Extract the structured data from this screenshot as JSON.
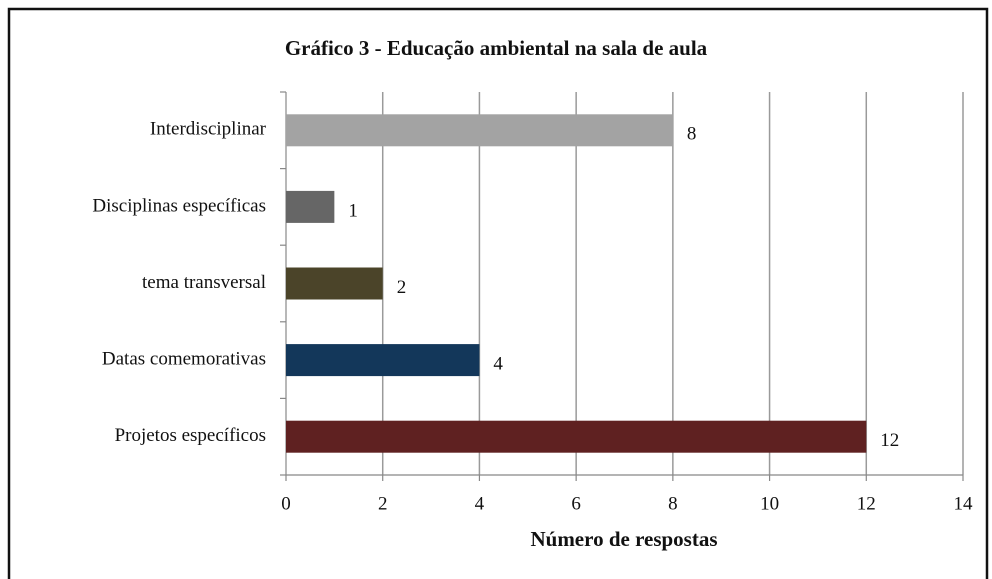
{
  "chart_data": {
    "type": "hbar",
    "title": "Gráfico 3 - Educação ambiental na sala de aula",
    "categories": [
      "Interdisciplinar",
      "Disciplinas específicas",
      "tema transversal",
      "Datas comemorativas",
      "Projetos específicos"
    ],
    "values": [
      8,
      1,
      2,
      4,
      12
    ],
    "colors": [
      "#a3a3a3",
      "#666666",
      "#4b4429",
      "#13375a",
      "#5f2121"
    ],
    "xlabel": "Número de respostas",
    "xlim": [
      0,
      14
    ],
    "xticks": [
      0,
      2,
      4,
      6,
      8,
      10,
      12,
      14
    ],
    "grid": true
  }
}
